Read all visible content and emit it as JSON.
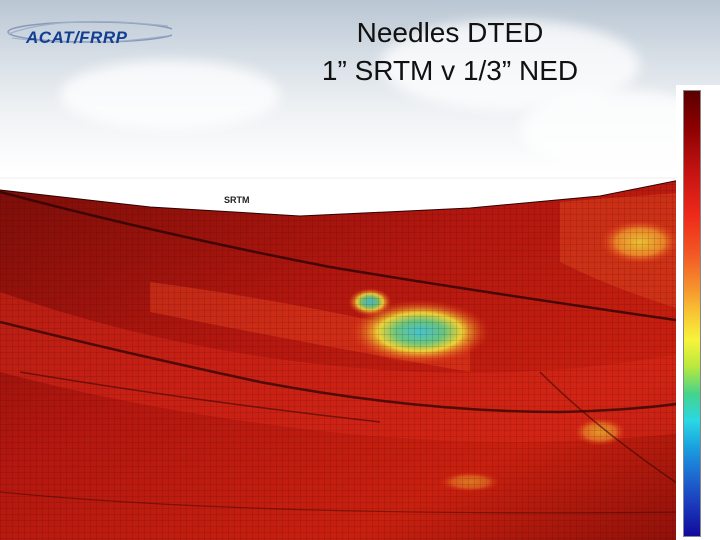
{
  "header": {
    "logo_text": "ACAT/FRRP",
    "title_line1": "Needles DTED",
    "title_line2": "1” SRTM v 1/3” NED"
  },
  "plot": {
    "panel_label": "SRTM"
  },
  "colors": {
    "terrain_base": "#b3170f",
    "terrain_dark": "#6e0c08",
    "terrain_light": "#ea3a1a",
    "highlight_yellow": "#f2e53a",
    "highlight_cyan": "#34d4e6",
    "logo_blue": "#123f92"
  },
  "icons": [
    "acat-frrp-logo",
    "colorbar-scale"
  ]
}
